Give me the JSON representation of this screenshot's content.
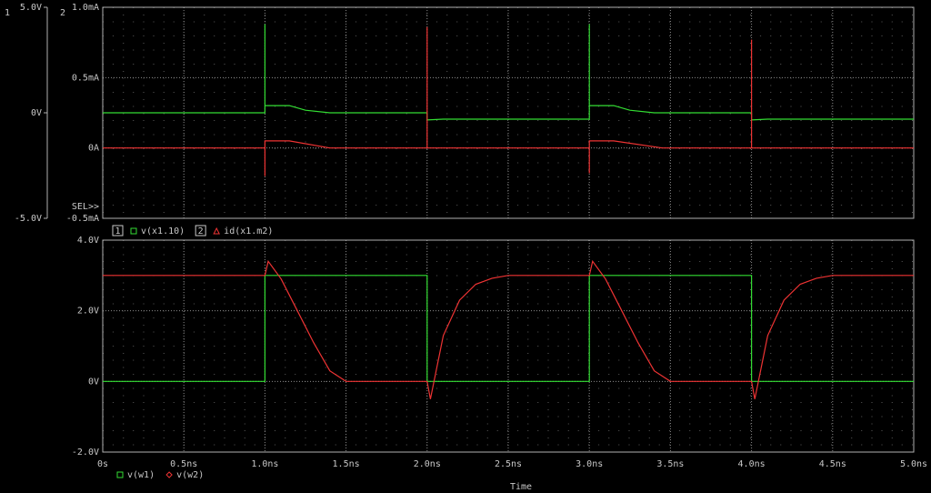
{
  "chart_data": [
    {
      "type": "line",
      "ylabel": "1",
      "y2label": "2",
      "selection_marker": "SEL>>",
      "xlim": [
        0,
        5
      ],
      "xticks": [
        0,
        0.5,
        1,
        1.5,
        2,
        2.5,
        3,
        3.5,
        4,
        4.5,
        5
      ],
      "ylim": [
        -5,
        5
      ],
      "yticks": [
        {
          "value": 5,
          "label": "5.0V"
        },
        {
          "value": 0,
          "label": "0V"
        },
        {
          "value": -5,
          "label": "-5.0V"
        }
      ],
      "y2lim": [
        -0.5,
        1.0
      ],
      "y2ticks": [
        {
          "value": 1.0,
          "label": "1.0mA"
        },
        {
          "value": 0.5,
          "label": "0.5mA"
        },
        {
          "value": 0,
          "label": "0A"
        },
        {
          "value": -0.5,
          "label": "-0.5mA"
        }
      ],
      "grid": true,
      "series": [
        {
          "name": "v(x1.10)",
          "color": "#33dd33",
          "axis": "y",
          "marker": "square",
          "x": [
            0,
            1,
            1,
            1,
            1.15,
            1.25,
            1.4,
            2,
            2,
            2.1,
            2.2,
            3,
            3,
            3,
            3.15,
            3.25,
            3.4,
            4,
            4,
            4.1,
            4.2,
            5
          ],
          "values": [
            0,
            0,
            4.2,
            0.34,
            0.34,
            0.12,
            0,
            0,
            -0.34,
            -0.3,
            -0.3,
            -0.3,
            4.2,
            0.34,
            0.34,
            0.12,
            0,
            0,
            -0.34,
            -0.3,
            -0.3,
            -0.3
          ]
        },
        {
          "name": "id(x1.m2)",
          "color": "#ee3333",
          "axis": "y2",
          "marker": "triangle",
          "x": [
            0,
            1,
            1,
            1,
            1.15,
            1.4,
            2,
            2,
            2,
            3,
            3,
            3,
            3.15,
            3.45,
            4,
            4,
            4,
            5
          ],
          "values": [
            0,
            0,
            -0.2,
            0.05,
            0.05,
            0,
            0,
            0.86,
            0,
            0,
            -0.18,
            0.05,
            0.05,
            0,
            0,
            0.77,
            0,
            0
          ]
        }
      ]
    },
    {
      "type": "line",
      "xlabel": "Time",
      "xlim": [
        0,
        5
      ],
      "xticks": [
        {
          "value": 0,
          "label": "0s"
        },
        {
          "value": 0.5,
          "label": "0.5ns"
        },
        {
          "value": 1,
          "label": "1.0ns"
        },
        {
          "value": 1.5,
          "label": "1.5ns"
        },
        {
          "value": 2,
          "label": "2.0ns"
        },
        {
          "value": 2.5,
          "label": "2.5ns"
        },
        {
          "value": 3,
          "label": "3.0ns"
        },
        {
          "value": 3.5,
          "label": "3.5ns"
        },
        {
          "value": 4,
          "label": "4.0ns"
        },
        {
          "value": 4.5,
          "label": "4.5ns"
        },
        {
          "value": 5,
          "label": "5.0ns"
        }
      ],
      "ylim": [
        -2,
        4
      ],
      "yticks": [
        {
          "value": 4,
          "label": "4.0V"
        },
        {
          "value": 2,
          "label": "2.0V"
        },
        {
          "value": 0,
          "label": "0V"
        },
        {
          "value": -2,
          "label": "-2.0V"
        }
      ],
      "grid": true,
      "series": [
        {
          "name": "v(w1)",
          "color": "#33dd33",
          "marker": "square",
          "x": [
            0,
            1,
            1,
            2,
            2,
            3,
            3,
            4,
            4,
            5
          ],
          "values": [
            0,
            0,
            3,
            3,
            0,
            0,
            3,
            3,
            0,
            0
          ]
        },
        {
          "name": "v(w2)",
          "color": "#ee3333",
          "marker": "diamond",
          "x": [
            0,
            1,
            1.02,
            1.1,
            1.2,
            1.3,
            1.4,
            1.5,
            2,
            2.02,
            2.1,
            2.2,
            2.3,
            2.4,
            2.5,
            3,
            3.02,
            3.1,
            3.2,
            3.3,
            3.4,
            3.5,
            4,
            4.02,
            4.1,
            4.2,
            4.3,
            4.4,
            4.5,
            5
          ],
          "values": [
            3,
            3,
            3.4,
            2.9,
            2.0,
            1.1,
            0.3,
            0,
            0,
            -0.5,
            1.3,
            2.3,
            2.75,
            2.92,
            3,
            3,
            3.4,
            2.9,
            2.0,
            1.1,
            0.3,
            0,
            0,
            -0.5,
            1.3,
            2.3,
            2.75,
            2.92,
            3,
            3
          ]
        }
      ]
    }
  ]
}
